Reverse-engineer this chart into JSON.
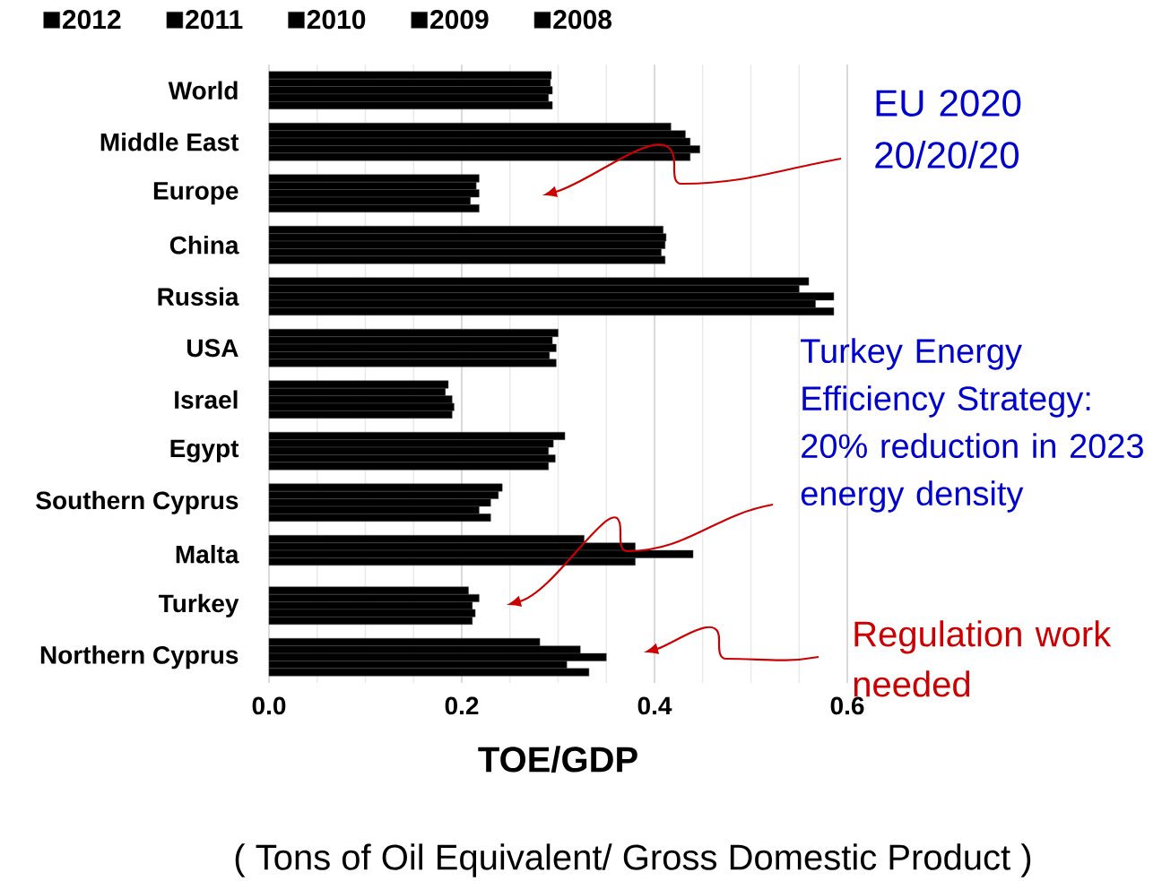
{
  "chart_data": {
    "type": "bar",
    "orientation": "horizontal",
    "xlabel": "TOE/GDP",
    "categories": [
      "World",
      "Middle East",
      "Europe",
      "China",
      "Russia",
      "USA",
      "Israel",
      "Egypt",
      "Southern Cyprus",
      "Malta",
      "Turkey",
      "Northern Cyprus"
    ],
    "series": [
      {
        "name": "2012",
        "color": "#000000",
        "values": [
          0.293,
          0.417,
          0.218,
          0.409,
          0.56,
          0.3,
          0.186,
          0.307,
          0.242,
          0.327,
          0.207,
          0.281
        ]
      },
      {
        "name": "2011",
        "color": "#000000",
        "values": [
          0.292,
          0.432,
          0.215,
          0.412,
          0.55,
          0.294,
          0.183,
          0.295,
          0.238,
          0.38,
          0.218,
          0.323
        ]
      },
      {
        "name": "2010",
        "color": "#000000",
        "values": [
          0.294,
          0.437,
          0.218,
          0.411,
          0.586,
          0.298,
          0.19,
          0.29,
          0.23,
          0.44,
          0.211,
          0.35
        ]
      },
      {
        "name": "2009",
        "color": "#000000",
        "values": [
          0.29,
          0.447,
          0.209,
          0.407,
          0.567,
          0.291,
          0.192,
          0.297,
          0.218,
          0.38,
          0.214,
          0.309
        ]
      },
      {
        "name": "2008",
        "color": "#000000",
        "values": [
          0.294,
          0.437,
          0.218,
          0.411,
          0.586,
          0.298,
          0.19,
          0.29,
          0.23,
          null,
          0.211,
          0.332
        ]
      }
    ],
    "xlim": [
      0,
      0.6
    ],
    "xticks": [
      {
        "value": 0,
        "label": "0.0"
      },
      0.2,
      0.4,
      0.6
    ],
    "grid": "x",
    "legend": "top",
    "annotations": [
      "EU 2020 20/20/20",
      "Turkey Energy Efficiency Strategy: 20% reduction in 2023 energy density",
      "Regulation work needed",
      "( Tons of Oil Equivalent/ Gross Domestic Product )"
    ]
  }
}
